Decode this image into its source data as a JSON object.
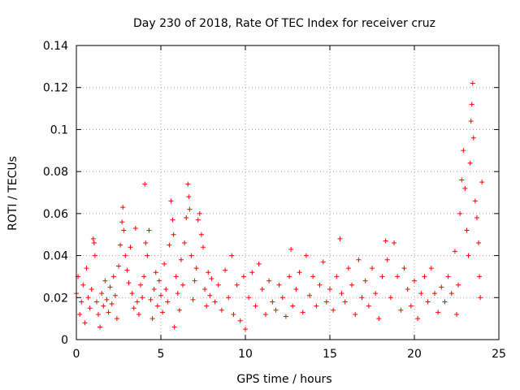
{
  "chart_data": {
    "type": "scatter",
    "title": "Day 230 of 2018, Rate Of TEC Index for receiver cruz",
    "xlabel": "GPS time / hours",
    "ylabel": "ROTI / TECUs",
    "xlim": [
      0,
      25
    ],
    "ylim": [
      0,
      0.14
    ],
    "xticks": [
      0,
      5,
      10,
      15,
      20,
      25
    ],
    "xtick_labels": [
      "0",
      "5",
      "10",
      "15",
      "20",
      "25"
    ],
    "yticks": [
      0,
      0.02,
      0.04,
      0.06,
      0.08,
      0.1,
      0.12,
      0.14
    ],
    "ytick_labels": [
      "0",
      "0.02",
      "0.04",
      "0.06",
      "0.08",
      "0.1",
      "0.12",
      "0.14"
    ],
    "grid": true,
    "marker": "+",
    "color": "#ff0000",
    "series": [
      {
        "name": "ROTI",
        "points": [
          [
            0.0,
            0.022
          ],
          [
            0.1,
            0.03
          ],
          [
            0.2,
            0.012
          ],
          [
            0.3,
            0.018
          ],
          [
            0.4,
            0.026
          ],
          [
            0.5,
            0.008
          ],
          [
            0.6,
            0.034
          ],
          [
            0.7,
            0.02
          ],
          [
            0.8,
            0.015
          ],
          [
            0.9,
            0.024
          ],
          [
            1.0,
            0.048
          ],
          [
            1.05,
            0.046
          ],
          [
            1.1,
            0.04
          ],
          [
            1.2,
            0.018
          ],
          [
            1.3,
            0.012
          ],
          [
            1.4,
            0.006
          ],
          [
            1.5,
            0.022
          ],
          [
            1.6,
            0.016
          ],
          [
            1.7,
            0.028
          ],
          [
            1.8,
            0.019
          ],
          [
            1.9,
            0.013
          ],
          [
            2.0,
            0.025
          ],
          [
            2.1,
            0.017
          ],
          [
            2.2,
            0.03
          ],
          [
            2.3,
            0.021
          ],
          [
            2.4,
            0.01
          ],
          [
            2.5,
            0.035
          ],
          [
            2.6,
            0.045
          ],
          [
            2.7,
            0.056
          ],
          [
            2.75,
            0.063
          ],
          [
            2.8,
            0.052
          ],
          [
            2.9,
            0.04
          ],
          [
            3.0,
            0.033
          ],
          [
            3.1,
            0.027
          ],
          [
            3.2,
            0.044
          ],
          [
            3.3,
            0.022
          ],
          [
            3.4,
            0.015
          ],
          [
            3.5,
            0.053
          ],
          [
            3.6,
            0.018
          ],
          [
            3.7,
            0.012
          ],
          [
            3.8,
            0.026
          ],
          [
            3.9,
            0.02
          ],
          [
            4.0,
            0.03
          ],
          [
            4.05,
            0.074
          ],
          [
            4.1,
            0.046
          ],
          [
            4.2,
            0.04
          ],
          [
            4.3,
            0.052
          ],
          [
            4.4,
            0.019
          ],
          [
            4.5,
            0.01
          ],
          [
            4.6,
            0.024
          ],
          [
            4.7,
            0.032
          ],
          [
            4.8,
            0.016
          ],
          [
            4.9,
            0.028
          ],
          [
            5.0,
            0.021
          ],
          [
            5.1,
            0.013
          ],
          [
            5.2,
            0.036
          ],
          [
            5.3,
            0.024
          ],
          [
            5.4,
            0.018
          ],
          [
            5.5,
            0.045
          ],
          [
            5.6,
            0.066
          ],
          [
            5.7,
            0.057
          ],
          [
            5.75,
            0.05
          ],
          [
            5.8,
            0.006
          ],
          [
            5.9,
            0.03
          ],
          [
            6.0,
            0.022
          ],
          [
            6.1,
            0.014
          ],
          [
            6.2,
            0.038
          ],
          [
            6.3,
            0.026
          ],
          [
            6.4,
            0.046
          ],
          [
            6.5,
            0.058
          ],
          [
            6.6,
            0.074
          ],
          [
            6.65,
            0.068
          ],
          [
            6.7,
            0.062
          ],
          [
            6.8,
            0.04
          ],
          [
            6.9,
            0.019
          ],
          [
            7.0,
            0.028
          ],
          [
            7.1,
            0.034
          ],
          [
            7.2,
            0.057
          ],
          [
            7.3,
            0.06
          ],
          [
            7.4,
            0.05
          ],
          [
            7.5,
            0.044
          ],
          [
            7.6,
            0.024
          ],
          [
            7.7,
            0.016
          ],
          [
            7.8,
            0.032
          ],
          [
            7.9,
            0.021
          ],
          [
            8.0,
            0.029
          ],
          [
            8.2,
            0.018
          ],
          [
            8.4,
            0.026
          ],
          [
            8.6,
            0.014
          ],
          [
            8.8,
            0.033
          ],
          [
            9.0,
            0.02
          ],
          [
            9.2,
            0.04
          ],
          [
            9.3,
            0.012
          ],
          [
            9.5,
            0.026
          ],
          [
            9.7,
            0.009
          ],
          [
            9.9,
            0.03
          ],
          [
            10.0,
            0.005
          ],
          [
            10.2,
            0.02
          ],
          [
            10.4,
            0.032
          ],
          [
            10.6,
            0.016
          ],
          [
            10.8,
            0.036
          ],
          [
            11.0,
            0.024
          ],
          [
            11.2,
            0.012
          ],
          [
            11.4,
            0.028
          ],
          [
            11.6,
            0.018
          ],
          [
            11.8,
            0.014
          ],
          [
            12.0,
            0.026
          ],
          [
            12.2,
            0.02
          ],
          [
            12.4,
            0.011
          ],
          [
            12.6,
            0.03
          ],
          [
            12.7,
            0.043
          ],
          [
            12.8,
            0.016
          ],
          [
            13.0,
            0.024
          ],
          [
            13.2,
            0.032
          ],
          [
            13.4,
            0.013
          ],
          [
            13.6,
            0.04
          ],
          [
            13.8,
            0.021
          ],
          [
            14.0,
            0.03
          ],
          [
            14.2,
            0.016
          ],
          [
            14.4,
            0.026
          ],
          [
            14.6,
            0.037
          ],
          [
            14.8,
            0.018
          ],
          [
            15.0,
            0.024
          ],
          [
            15.2,
            0.014
          ],
          [
            15.4,
            0.03
          ],
          [
            15.6,
            0.048
          ],
          [
            15.7,
            0.022
          ],
          [
            15.9,
            0.018
          ],
          [
            16.1,
            0.034
          ],
          [
            16.3,
            0.026
          ],
          [
            16.5,
            0.012
          ],
          [
            16.7,
            0.038
          ],
          [
            16.9,
            0.02
          ],
          [
            17.1,
            0.028
          ],
          [
            17.3,
            0.016
          ],
          [
            17.5,
            0.034
          ],
          [
            17.7,
            0.022
          ],
          [
            17.9,
            0.01
          ],
          [
            18.1,
            0.03
          ],
          [
            18.3,
            0.047
          ],
          [
            18.4,
            0.038
          ],
          [
            18.6,
            0.02
          ],
          [
            18.8,
            0.046
          ],
          [
            19.0,
            0.03
          ],
          [
            19.2,
            0.014
          ],
          [
            19.4,
            0.034
          ],
          [
            19.6,
            0.024
          ],
          [
            19.8,
            0.016
          ],
          [
            20.0,
            0.028
          ],
          [
            20.2,
            0.01
          ],
          [
            20.4,
            0.022
          ],
          [
            20.6,
            0.03
          ],
          [
            20.8,
            0.018
          ],
          [
            21.0,
            0.034
          ],
          [
            21.2,
            0.022
          ],
          [
            21.4,
            0.013
          ],
          [
            21.6,
            0.025
          ],
          [
            21.8,
            0.018
          ],
          [
            22.0,
            0.03
          ],
          [
            22.2,
            0.022
          ],
          [
            22.4,
            0.042
          ],
          [
            22.5,
            0.012
          ],
          [
            22.6,
            0.026
          ],
          [
            22.7,
            0.06
          ],
          [
            22.8,
            0.076
          ],
          [
            22.9,
            0.09
          ],
          [
            23.0,
            0.072
          ],
          [
            23.1,
            0.052
          ],
          [
            23.2,
            0.04
          ],
          [
            23.3,
            0.084
          ],
          [
            23.35,
            0.104
          ],
          [
            23.4,
            0.112
          ],
          [
            23.45,
            0.122
          ],
          [
            23.5,
            0.096
          ],
          [
            23.6,
            0.066
          ],
          [
            23.7,
            0.058
          ],
          [
            23.8,
            0.046
          ],
          [
            23.85,
            0.03
          ],
          [
            23.9,
            0.02
          ],
          [
            24.0,
            0.075
          ]
        ]
      }
    ]
  }
}
